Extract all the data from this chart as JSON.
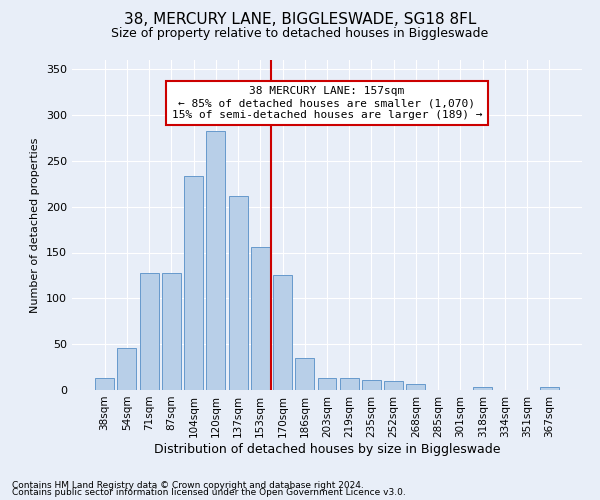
{
  "title": "38, MERCURY LANE, BIGGLESWADE, SG18 8FL",
  "subtitle": "Size of property relative to detached houses in Biggleswade",
  "xlabel": "Distribution of detached houses by size in Biggleswade",
  "ylabel": "Number of detached properties",
  "footnote1": "Contains HM Land Registry data © Crown copyright and database right 2024.",
  "footnote2": "Contains public sector information licensed under the Open Government Licence v3.0.",
  "bin_labels": [
    "38sqm",
    "54sqm",
    "71sqm",
    "87sqm",
    "104sqm",
    "120sqm",
    "137sqm",
    "153sqm",
    "170sqm",
    "186sqm",
    "203sqm",
    "219sqm",
    "235sqm",
    "252sqm",
    "268sqm",
    "285sqm",
    "301sqm",
    "318sqm",
    "334sqm",
    "351sqm",
    "367sqm"
  ],
  "bar_values": [
    13,
    46,
    128,
    128,
    233,
    283,
    212,
    156,
    126,
    35,
    13,
    13,
    11,
    10,
    7,
    0,
    0,
    3,
    0,
    0,
    3
  ],
  "bar_color": "#b8cfe8",
  "bar_edge_color": "#6699cc",
  "vline_color": "#cc0000",
  "vline_bin_index": 7.5,
  "annotation_text": "38 MERCURY LANE: 157sqm\n← 85% of detached houses are smaller (1,070)\n15% of semi-detached houses are larger (189) →",
  "annotation_box_color": "#ffffff",
  "annotation_box_edge": "#cc0000",
  "ylim": [
    0,
    360
  ],
  "yticks": [
    0,
    50,
    100,
    150,
    200,
    250,
    300,
    350
  ],
  "bg_color": "#e8eef8",
  "plot_bg_color": "#e8eef8",
  "title_fontsize": 11,
  "subtitle_fontsize": 9
}
